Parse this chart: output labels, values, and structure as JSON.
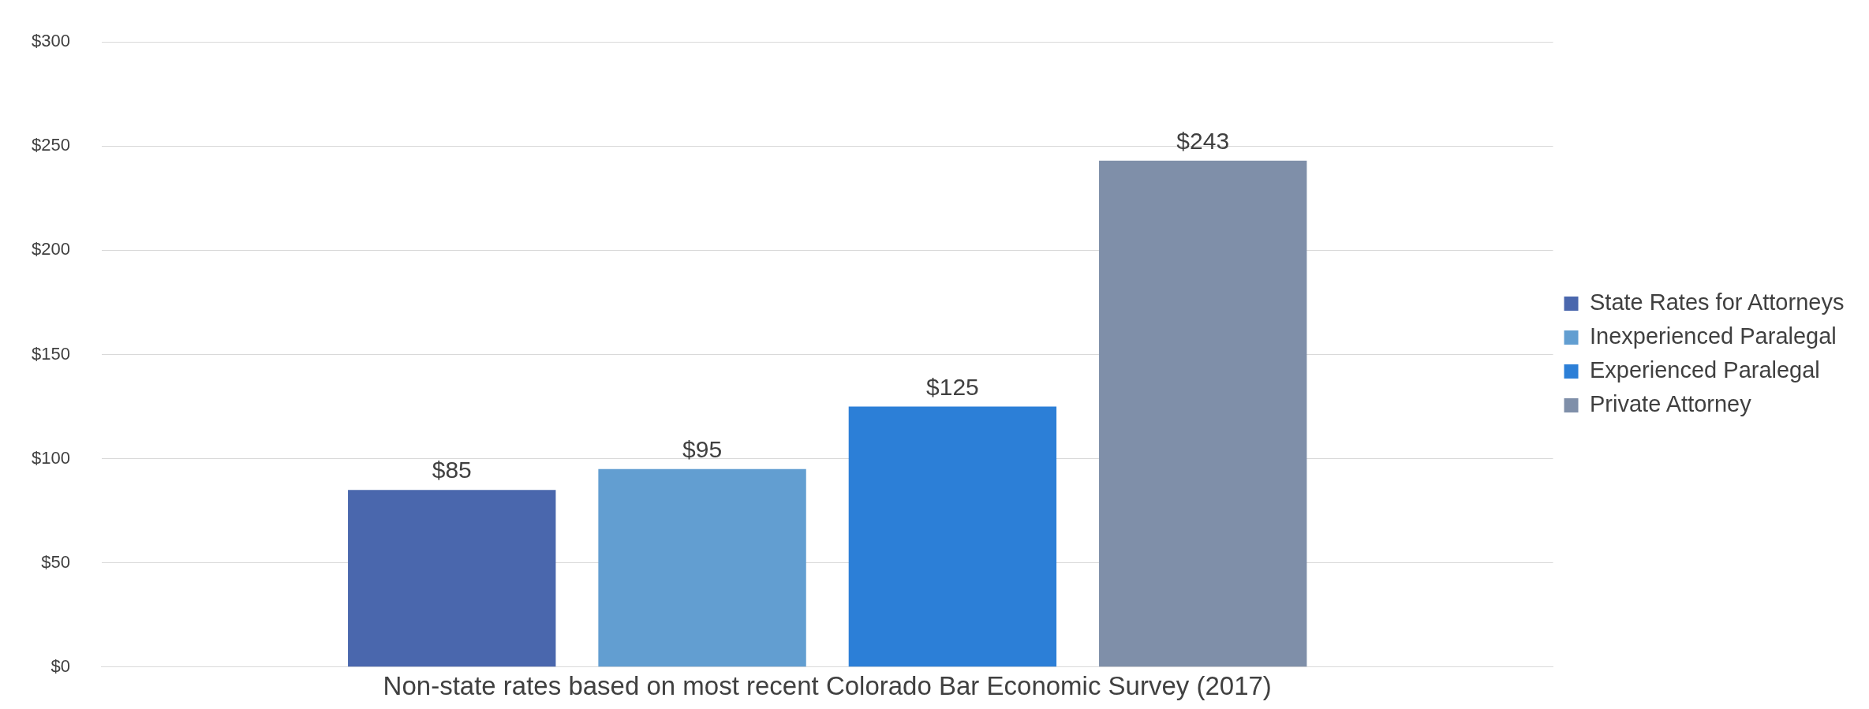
{
  "chart_data": {
    "type": "bar",
    "categories": [
      "Non-state rates based on most recent Colorado Bar Economic Survey (2017)"
    ],
    "series": [
      {
        "name": "State Rates for Attorneys",
        "color": "#4a67ad",
        "values": [
          85
        ]
      },
      {
        "name": "Inexperienced Paralegal",
        "color": "#629ed1",
        "values": [
          95
        ]
      },
      {
        "name": "Experienced Paralegal",
        "color": "#2c7fd7",
        "values": [
          125
        ]
      },
      {
        "name": "Private Attorney",
        "color": "#7f8fa9",
        "values": [
          243
        ]
      }
    ],
    "ylim": [
      0,
      300
    ],
    "yticks": [
      {
        "value": 0,
        "label": "$0"
      },
      {
        "value": 50,
        "label": "$50"
      },
      {
        "value": 100,
        "label": "$100"
      },
      {
        "value": 150,
        "label": "$150"
      },
      {
        "value": 200,
        "label": "$200"
      },
      {
        "value": 250,
        "label": "$250"
      },
      {
        "value": 300,
        "label": "$300"
      }
    ],
    "value_labels": [
      "$85",
      "$95",
      "$125",
      "$243"
    ],
    "grid": "y",
    "legend": "right"
  }
}
